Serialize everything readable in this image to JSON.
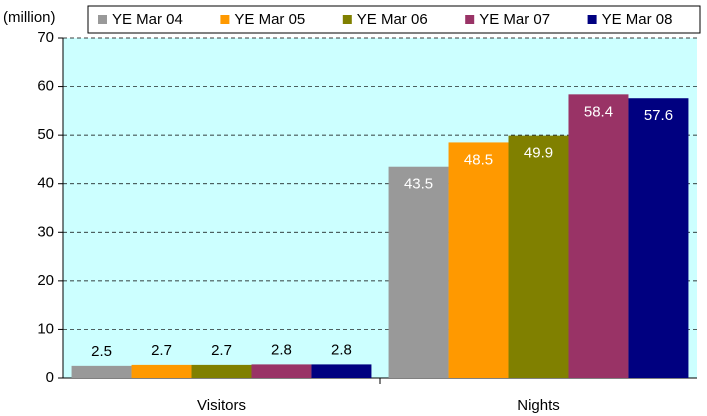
{
  "chart_data": {
    "type": "bar",
    "y_label": "(million)",
    "categories": [
      "Visitors",
      "Nights"
    ],
    "series": [
      {
        "name": "YE Mar 04",
        "color": "#999999",
        "values": [
          2.5,
          43.5
        ]
      },
      {
        "name": "YE Mar 05",
        "color": "#ff9900",
        "values": [
          2.7,
          48.5
        ]
      },
      {
        "name": "YE Mar 06",
        "color": "#808000",
        "values": [
          2.7,
          49.9
        ]
      },
      {
        "name": "YE Mar 07",
        "color": "#993366",
        "values": [
          2.8,
          58.4
        ]
      },
      {
        "name": "YE Mar 08",
        "color": "#000080",
        "values": [
          2.8,
          57.6
        ]
      }
    ],
    "ylim": [
      0,
      70
    ],
    "yticks": [
      0,
      10,
      20,
      30,
      40,
      50,
      60,
      70
    ],
    "grid": true,
    "legend": "top",
    "background": "#ccffff"
  }
}
